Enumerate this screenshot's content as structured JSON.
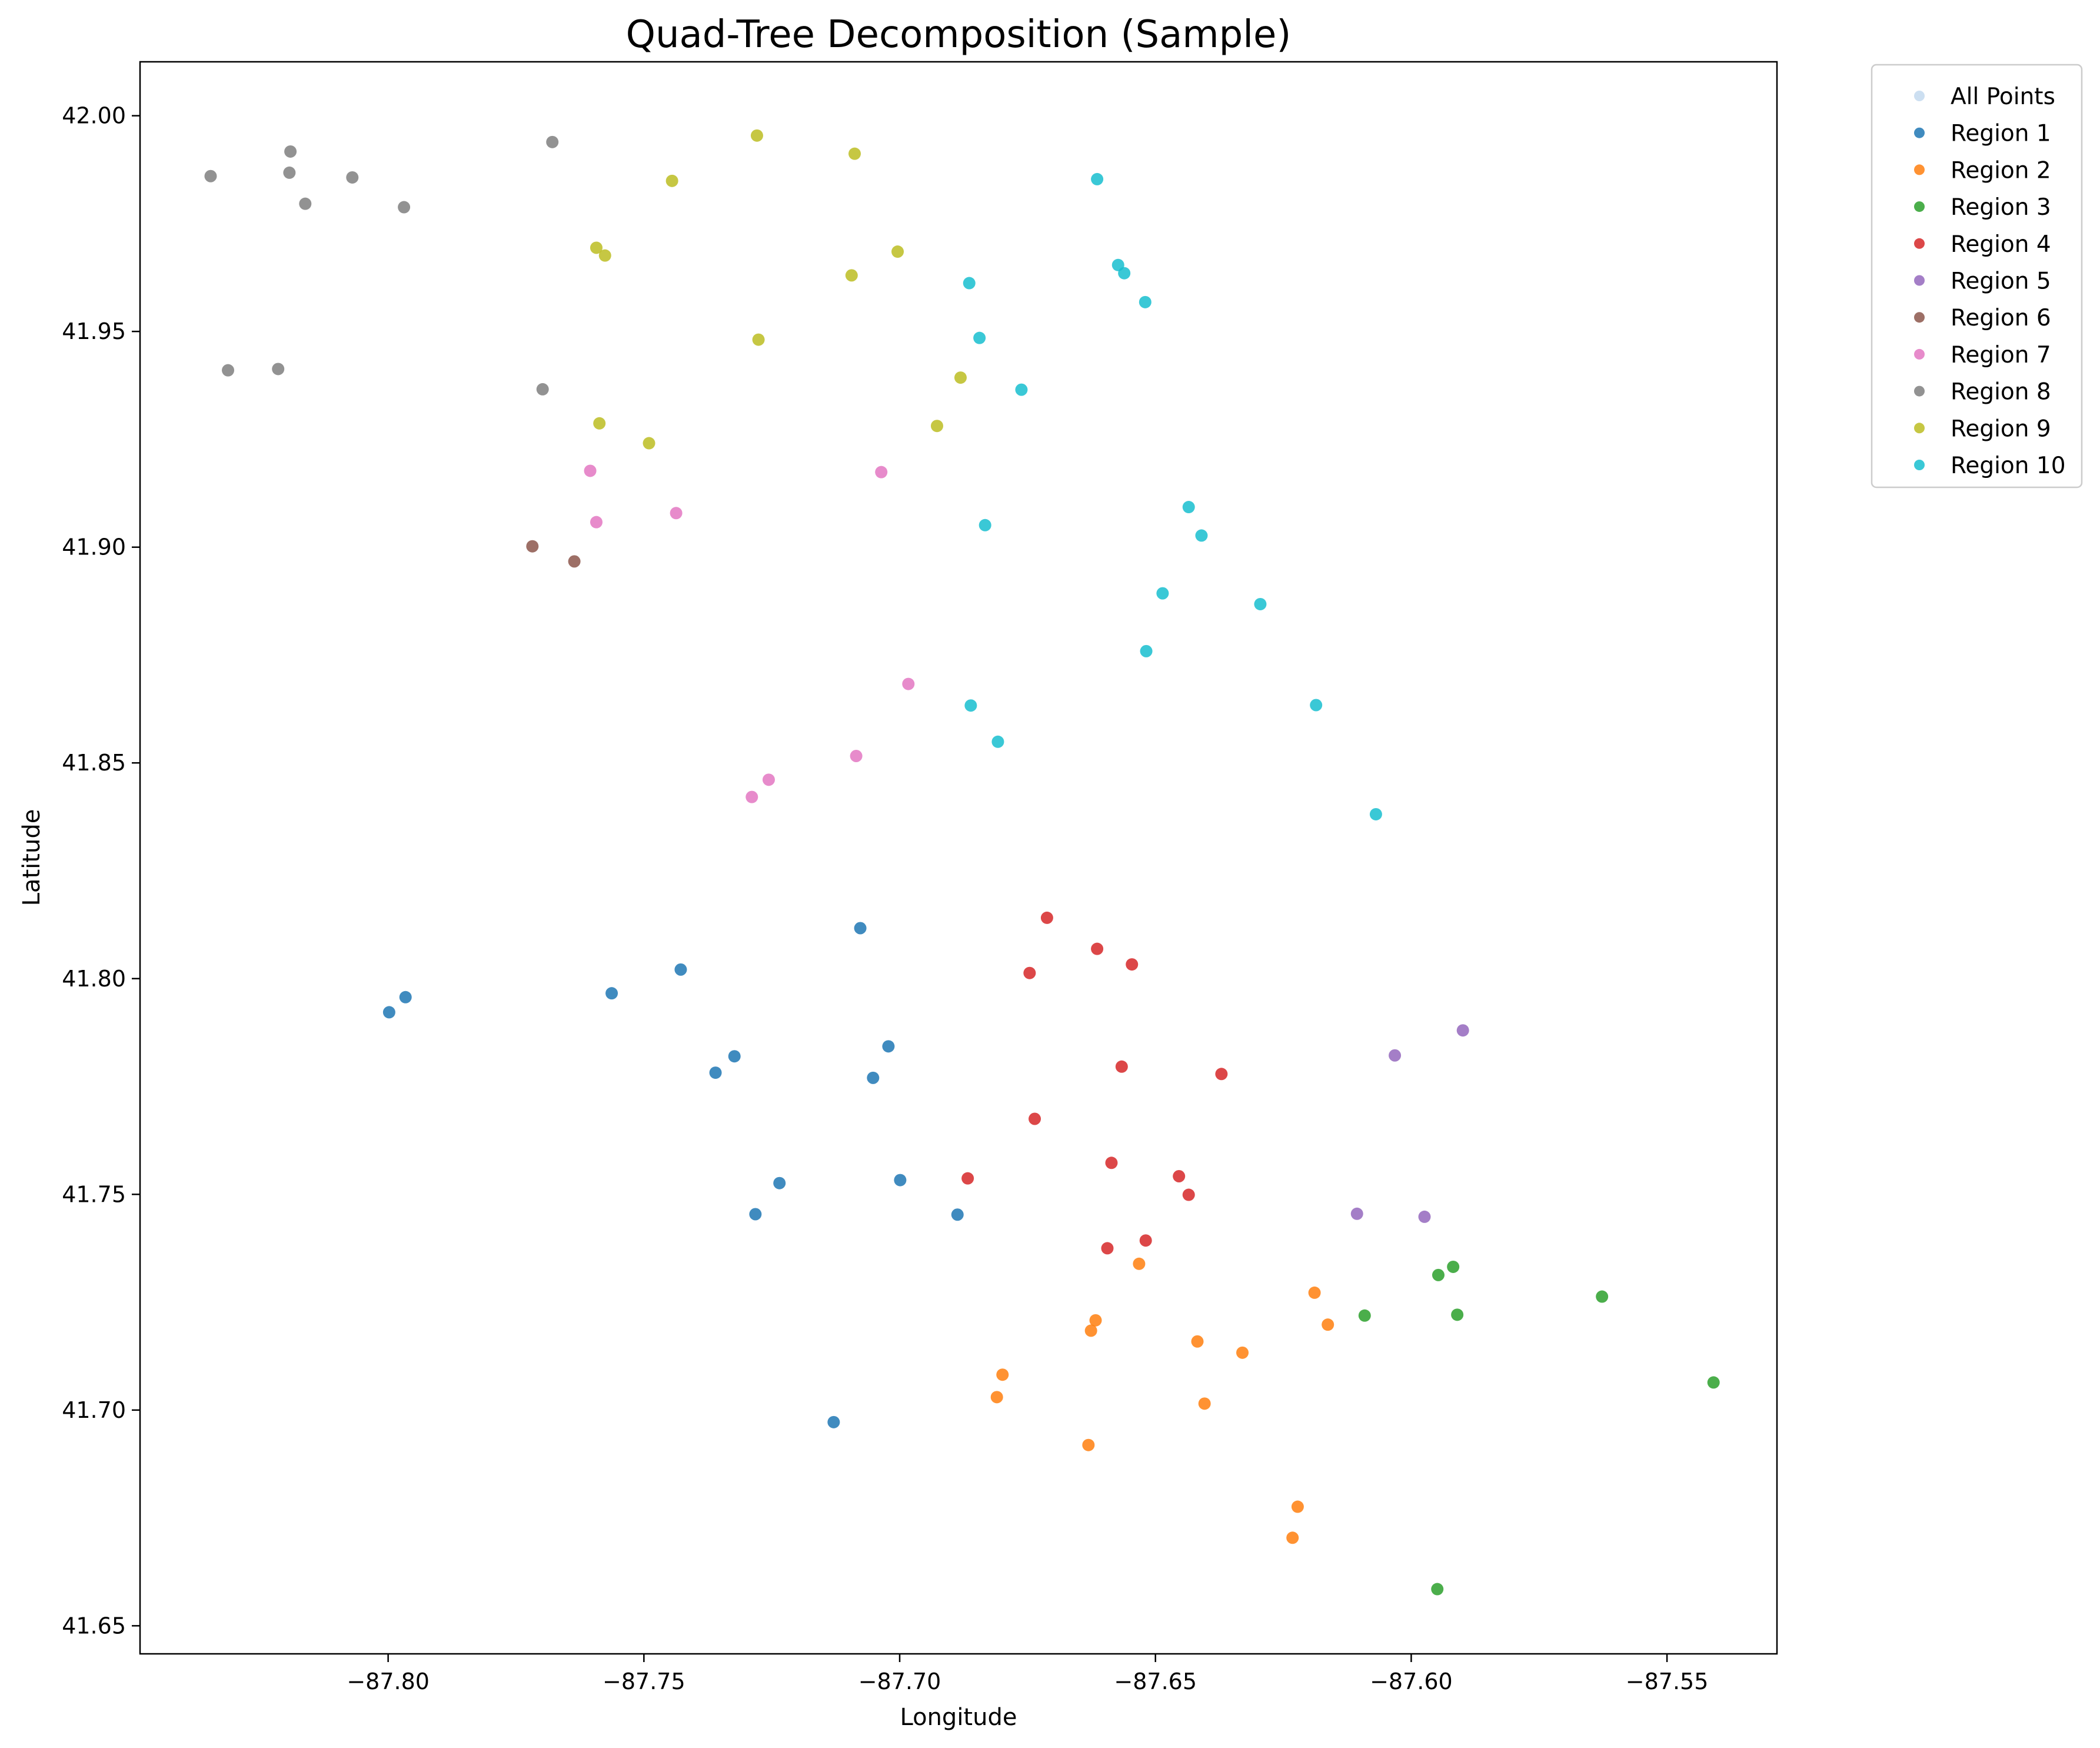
{
  "chart_data": {
    "type": "scatter",
    "title": "Quad-Tree Decomposition (Sample)",
    "xlabel": "Longitude",
    "ylabel": "Latitude",
    "xlim": [
      -87.8485,
      -87.5285
    ],
    "ylim": [
      41.6435,
      42.0125
    ],
    "xticks": [
      -87.8,
      -87.75,
      -87.7,
      -87.65,
      -87.6,
      -87.55
    ],
    "xtick_labels": [
      "−87.80",
      "−87.75",
      "−87.70",
      "−87.65",
      "−87.60",
      "−87.55"
    ],
    "yticks": [
      41.65,
      41.7,
      41.75,
      41.8,
      41.85,
      41.9,
      41.95,
      42.0
    ],
    "ytick_labels": [
      "41.65",
      "41.70",
      "41.75",
      "41.80",
      "41.85",
      "41.90",
      "41.95",
      "42.00"
    ],
    "grid": false,
    "legend_position": "outside-top-right",
    "series": [
      {
        "name": "All Points",
        "color": "#c6dbef",
        "points": []
      },
      {
        "name": "Region 1",
        "color": "#1f77b4",
        "points": [
          [
            -87.7998,
            41.7922
          ],
          [
            -87.7966,
            41.7957
          ],
          [
            -87.7563,
            41.7966
          ],
          [
            -87.7428,
            41.8021
          ],
          [
            -87.7077,
            41.8117
          ],
          [
            -87.7323,
            41.782
          ],
          [
            -87.736,
            41.7782
          ],
          [
            -87.7022,
            41.7843
          ],
          [
            -87.7052,
            41.777
          ],
          [
            -87.7235,
            41.7526
          ],
          [
            -87.7282,
            41.7454
          ],
          [
            -87.6999,
            41.7533
          ],
          [
            -87.6887,
            41.7453
          ],
          [
            -87.7129,
            41.6972
          ]
        ]
      },
      {
        "name": "Region 2",
        "color": "#ff7f0e",
        "points": [
          [
            -87.6532,
            41.7339
          ],
          [
            -87.6189,
            41.7272
          ],
          [
            -87.6163,
            41.7198
          ],
          [
            -87.6617,
            41.7208
          ],
          [
            -87.6626,
            41.7184
          ],
          [
            -87.6418,
            41.7159
          ],
          [
            -87.633,
            41.7133
          ],
          [
            -87.6799,
            41.7082
          ],
          [
            -87.681,
            41.703
          ],
          [
            -87.6404,
            41.7015
          ],
          [
            -87.6631,
            41.6919
          ],
          [
            -87.6222,
            41.6776
          ],
          [
            -87.6232,
            41.6704
          ]
        ]
      },
      {
        "name": "Region 3",
        "color": "#2ca02c",
        "points": [
          [
            -87.5918,
            41.7332
          ],
          [
            -87.5947,
            41.7313
          ],
          [
            -87.6091,
            41.7219
          ],
          [
            -87.591,
            41.7221
          ],
          [
            -87.5627,
            41.7263
          ],
          [
            -87.5409,
            41.7064
          ],
          [
            -87.5949,
            41.6585
          ]
        ]
      },
      {
        "name": "Region 4",
        "color": "#d62728",
        "points": [
          [
            -87.6712,
            41.8141
          ],
          [
            -87.6614,
            41.8069
          ],
          [
            -87.6746,
            41.8013
          ],
          [
            -87.6546,
            41.8033
          ],
          [
            -87.6566,
            41.7796
          ],
          [
            -87.6371,
            41.7779
          ],
          [
            -87.6736,
            41.7675
          ],
          [
            -87.6586,
            41.7573
          ],
          [
            -87.6867,
            41.7537
          ],
          [
            -87.6454,
            41.7542
          ],
          [
            -87.6435,
            41.7499
          ],
          [
            -87.6519,
            41.7393
          ],
          [
            -87.6594,
            41.7375
          ]
        ]
      },
      {
        "name": "Region 5",
        "color": "#9467bd",
        "points": [
          [
            -87.5899,
            41.788
          ],
          [
            -87.6032,
            41.7822
          ],
          [
            -87.6106,
            41.7455
          ],
          [
            -87.5974,
            41.7448
          ]
        ]
      },
      {
        "name": "Region 6",
        "color": "#8c564b",
        "points": [
          [
            -87.7718,
            41.9002
          ],
          [
            -87.7636,
            41.8967
          ]
        ]
      },
      {
        "name": "Region 7",
        "color": "#e377c2",
        "points": [
          [
            -87.7605,
            41.9177
          ],
          [
            -87.7593,
            41.9058
          ],
          [
            -87.7437,
            41.9079
          ],
          [
            -87.7036,
            41.9174
          ],
          [
            -87.6983,
            41.8683
          ],
          [
            -87.7085,
            41.8516
          ],
          [
            -87.7256,
            41.8461
          ],
          [
            -87.7289,
            41.8421
          ]
        ]
      },
      {
        "name": "Region 8",
        "color": "#7f7f7f",
        "points": [
          [
            -87.8347,
            41.986
          ],
          [
            -87.8191,
            41.9917
          ],
          [
            -87.8193,
            41.9868
          ],
          [
            -87.8162,
            41.9796
          ],
          [
            -87.807,
            41.9857
          ],
          [
            -87.7969,
            41.9788
          ],
          [
            -87.7679,
            41.9939
          ],
          [
            -87.8313,
            41.941
          ],
          [
            -87.8215,
            41.9413
          ],
          [
            -87.7698,
            41.9366
          ]
        ]
      },
      {
        "name": "Region 9",
        "color": "#bcbd22",
        "points": [
          [
            -87.7279,
            41.9954
          ],
          [
            -87.7088,
            41.9912
          ],
          [
            -87.7445,
            41.9849
          ],
          [
            -87.7593,
            41.9694
          ],
          [
            -87.7576,
            41.9676
          ],
          [
            -87.7004,
            41.9685
          ],
          [
            -87.7094,
            41.963
          ],
          [
            -87.7276,
            41.9481
          ],
          [
            -87.6881,
            41.9393
          ],
          [
            -87.7587,
            41.9287
          ],
          [
            -87.749,
            41.9241
          ],
          [
            -87.6927,
            41.9281
          ]
        ]
      },
      {
        "name": "Region 10",
        "color": "#17becf",
        "points": [
          [
            -87.6614,
            41.9853
          ],
          [
            -87.6573,
            41.9654
          ],
          [
            -87.6561,
            41.9635
          ],
          [
            -87.6864,
            41.9612
          ],
          [
            -87.652,
            41.9568
          ],
          [
            -87.6844,
            41.9485
          ],
          [
            -87.6762,
            41.9365
          ],
          [
            -87.6435,
            41.9093
          ],
          [
            -87.6833,
            41.9051
          ],
          [
            -87.641,
            41.9027
          ],
          [
            -87.6486,
            41.8893
          ],
          [
            -87.6295,
            41.8868
          ],
          [
            -87.6518,
            41.8759
          ],
          [
            -87.6861,
            41.8633
          ],
          [
            -87.6186,
            41.8634
          ],
          [
            -87.6808,
            41.8549
          ],
          [
            -87.6069,
            41.8381
          ]
        ]
      }
    ]
  }
}
